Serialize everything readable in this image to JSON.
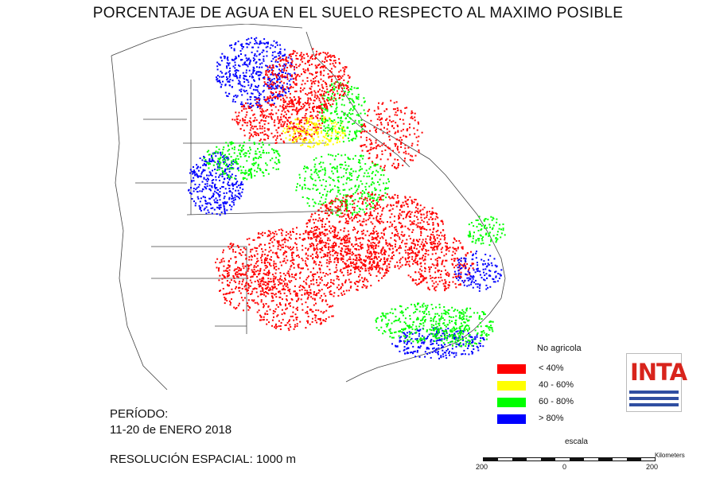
{
  "title": "PORCENTAJE DE AGUA EN EL SUELO RESPECTO AL MAXIMO POSIBLE",
  "legend": {
    "title": "No agricola",
    "items": [
      {
        "label": "< 40%",
        "color": "#ff0000"
      },
      {
        "label": "40 - 60%",
        "color": "#ffff00"
      },
      {
        "label": "60 - 80%",
        "color": "#00ff00"
      },
      {
        "label": "> 80%",
        "color": "#0000ff"
      }
    ]
  },
  "logo": {
    "text": "INTA",
    "color": "#d8241c",
    "stripe_color": "#2f4ea1"
  },
  "period": {
    "label": "PERÍODO:",
    "value": "11-20 de ENERO 2018"
  },
  "resolution": "RESOLUCIÓN ESPACIAL: 1000 m",
  "scale": {
    "title": "escala",
    "unit": "Kilometers",
    "ticks": [
      "200",
      "0",
      "200"
    ]
  }
}
